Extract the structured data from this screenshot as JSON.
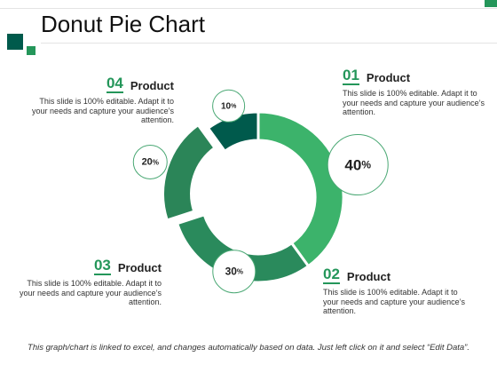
{
  "slide": {
    "title": "Donut Pie Chart",
    "footer": "This graph/chart is linked to excel, and changes automatically based on data. Just left click on it and select “Edit Data”."
  },
  "colors": {
    "accent": "#24965a",
    "dark": "#005a4c",
    "slice_01": "#3cb36b",
    "slice_02": "#2a8a5c",
    "slice_03": "#2b8558",
    "slice_04": "#005a4c",
    "circle_stroke": "#4aa874"
  },
  "chart_data": {
    "type": "pie",
    "style": "donut",
    "categories": [
      "01",
      "02",
      "03",
      "04"
    ],
    "values": [
      40,
      30,
      20,
      10
    ],
    "value_labels": [
      "40%",
      "30%",
      "20%",
      "10%"
    ],
    "legend": "none"
  },
  "blocks": [
    {
      "num": "01",
      "label": "Product",
      "desc": "This slide is 100% editable. Adapt it to your needs and capture your audience’s attention."
    },
    {
      "num": "02",
      "label": "Product",
      "desc": "This slide is 100% editable. Adapt it to your needs and capture your audience’s attention."
    },
    {
      "num": "03",
      "label": "Product",
      "desc": "This slide is 100% editable. Adapt it to your needs and capture your audience’s attention."
    },
    {
      "num": "04",
      "label": "Product",
      "desc": "This slide is 100% editable. Adapt it to your needs and capture your audience’s attention."
    }
  ]
}
